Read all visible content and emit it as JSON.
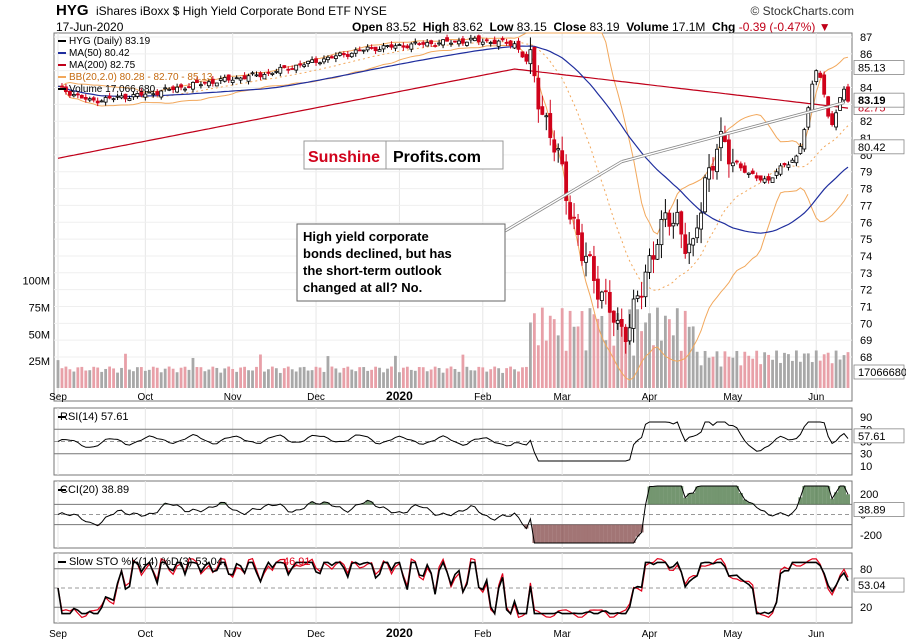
{
  "header": {
    "ticker": "HYG",
    "description": "iShares iBoxx $ High Yield Corporate Bond ETF",
    "exchange": "NYSE",
    "date": "17-Jun-2020",
    "brand": "© StockCharts.com",
    "open_label": "Open",
    "open": "83.52",
    "high_label": "High",
    "high": "83.62",
    "low_label": "Low",
    "low": "83.15",
    "close_label": "Close",
    "close": "83.19",
    "volume_label": "Volume",
    "volume": "17.1M",
    "chg_label": "Chg",
    "chg": "-0.39 (-0.47%)"
  },
  "legend": {
    "hyg": "HYG (Daily) 83.19",
    "ma50": "MA(50) 80.42",
    "ma200": "MA(200) 82.75",
    "bb": "BB(20,2.0) 80.28 - 82.70 - 85.13",
    "volume": "Volume 17,066,680"
  },
  "colors": {
    "up": "#000000",
    "down": "#d0021b",
    "ma50": "#1f2e9e",
    "ma200": "#c0001a",
    "bb": "#f2a85c",
    "vol_up": "#a8a8a8",
    "vol_down": "#e8a0a8",
    "rsi_fill": "#3a6b35",
    "cci_neg_fill": "#7b3b3b",
    "sto_k": "#000000",
    "sto_d": "#e0001a"
  },
  "watermark": {
    "part1": "Sunshine",
    "part2": "Profits.com"
  },
  "annotation": {
    "lines": [
      "High yield corporate",
      "bonds declined, but has",
      "the short-term outlook",
      "changed at all? No."
    ]
  },
  "price_axis": {
    "ticks": [
      "87",
      "86",
      "85",
      "84",
      "83",
      "82",
      "81",
      "80",
      "79",
      "78",
      "77",
      "76",
      "75",
      "74",
      "73",
      "72",
      "71",
      "70",
      "69",
      "68"
    ],
    "label_ma200": "82.75",
    "label_bb_upper": "85.13",
    "label_close": "83.19",
    "label_ma50": "80.42",
    "label_volume": "17066680"
  },
  "volume_axis": {
    "ticks": [
      "100M",
      "75M",
      "50M",
      "25M"
    ]
  },
  "x_axis": {
    "months": [
      "Sep",
      "Oct",
      "Nov",
      "Dec",
      "2020",
      "Feb",
      "Mar",
      "Apr",
      "May",
      "Jun"
    ]
  },
  "rsi": {
    "title": "RSI(14) 57.61",
    "ticks": [
      "90",
      "70",
      "50",
      "30",
      "10"
    ],
    "value": "57.61"
  },
  "cci": {
    "title": "CCI(20) 38.89",
    "ticks": [
      "200",
      "0",
      "-200"
    ],
    "value": "38.89"
  },
  "sto": {
    "title_prefix": "Slow STO %K(14) %D(3) 53.04,",
    "d_value": "46.91",
    "ticks": [
      "80",
      "50",
      "20"
    ],
    "value": "53.04"
  },
  "chart_data": {
    "type": "candlestick",
    "period": "Sep 2019 - 17-Jun-2020",
    "price_ylim": [
      67,
      87.5
    ],
    "monthly_approx": [
      {
        "month": "Sep",
        "close": 84.0
      },
      {
        "month": "Oct",
        "close": 83.8
      },
      {
        "month": "Nov",
        "close": 84.7
      },
      {
        "month": "Dec",
        "close": 86.0
      },
      {
        "month": "Jan",
        "close": 86.3
      },
      {
        "month": "Feb",
        "close": 86.8
      },
      {
        "month": "Mar",
        "close": 77.0,
        "low": 68.0
      },
      {
        "month": "Apr",
        "close": 79.0
      },
      {
        "month": "May",
        "close": 80.5
      },
      {
        "month": "Jun",
        "close": 83.19,
        "high": 85.5
      }
    ],
    "last": {
      "open": 83.52,
      "high": 83.62,
      "low": 83.15,
      "close": 83.19,
      "volume": 17066680
    },
    "indicators": {
      "ma50": 80.42,
      "ma200": 82.75,
      "bb_lower": 80.28,
      "bb_mid": 82.7,
      "bb_upper": 85.13,
      "rsi14": 57.61,
      "cci20": 38.89,
      "sto_k": 53.04,
      "sto_d": 46.91
    }
  }
}
